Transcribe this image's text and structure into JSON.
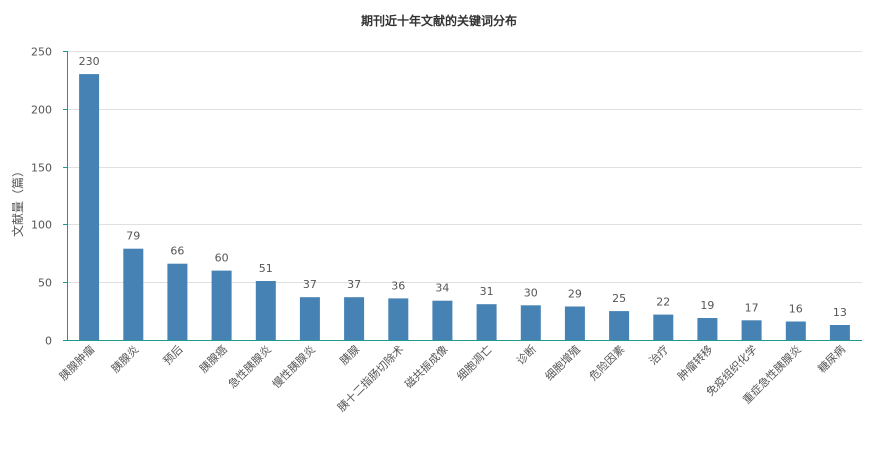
{
  "chart_data": {
    "type": "bar",
    "title": "期刊近十年文献的关键词分布",
    "xlabel": "",
    "ylabel": "文献量（篇）",
    "ylim": [
      0,
      250
    ],
    "yticks": [
      0,
      50,
      100,
      150,
      200,
      250
    ],
    "grid": true,
    "bar_color": "#4682b4",
    "axis_color": "#1d9a8f",
    "categories": [
      "胰腺肿瘤",
      "胰腺炎",
      "预后",
      "胰腺癌",
      "急性胰腺炎",
      "慢性胰腺炎",
      "胰腺",
      "胰十二指肠切除术",
      "磁共振成像",
      "细胞凋亡",
      "诊断",
      "细胞增殖",
      "危险因素",
      "治疗",
      "肿瘤转移",
      "免疫组织化学",
      "重症急性胰腺炎",
      "糖尿病"
    ],
    "values": [
      230,
      79,
      66,
      60,
      51,
      37,
      37,
      36,
      34,
      31,
      30,
      29,
      25,
      22,
      19,
      17,
      16,
      13
    ]
  }
}
